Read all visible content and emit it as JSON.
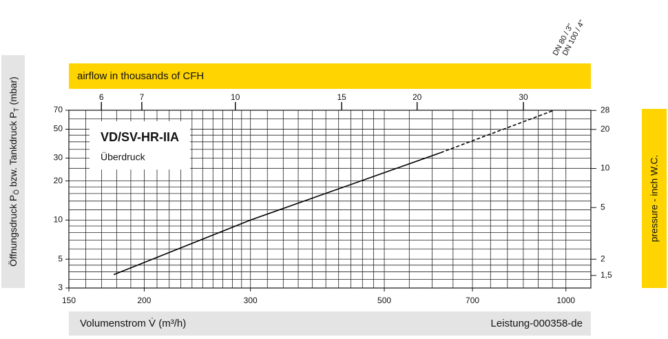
{
  "chart_data": {
    "type": "line",
    "title": "VD/SV-HR-IIA",
    "subtitle": "Überdruck",
    "x_label": "Volumenstrom V̇ (m³/h)",
    "y_label": [
      "Öffnungsdruck P",
      "Ö",
      " bzw. Tankdruck P",
      "T",
      " (mbar)"
    ],
    "x2_label": "airflow in thousands of CFH",
    "y2_label": "pressure - inch W.C.",
    "footer": "Leistung-000358-de",
    "annotations": [
      "DN 80 / 3\"",
      "DN 100 / 4\""
    ],
    "xscale": "log",
    "yscale": "log",
    "xlim": [
      150,
      1100
    ],
    "ylim": [
      3,
      70
    ],
    "xticks": [
      150,
      200,
      300,
      500,
      700,
      1000
    ],
    "yticks": [
      3,
      5,
      10,
      20,
      30,
      50,
      70
    ],
    "xgrid": [
      160,
      170,
      180,
      190,
      200,
      210,
      220,
      230,
      240,
      250,
      260,
      270,
      280,
      290,
      300,
      320,
      340,
      360,
      380,
      400,
      420,
      440,
      460,
      480,
      500,
      550,
      600,
      650,
      700,
      750,
      800,
      850,
      900,
      950,
      1000
    ],
    "ygrid": [
      3.5,
      4,
      4.5,
      5,
      6,
      7,
      8,
      9,
      10,
      12,
      14,
      16,
      18,
      20,
      25,
      30,
      35,
      40,
      45,
      50,
      60
    ],
    "x2lim": [
      5.3,
      38.8
    ],
    "x2ticks": [
      6,
      7,
      10,
      15,
      20,
      30
    ],
    "y2lim": [
      1.2,
      28.1
    ],
    "y2ticks": [
      28,
      20,
      10,
      5,
      2,
      {
        "value": 1.5,
        "label": "1,5"
      }
    ],
    "band_color": "#ffd400",
    "label_band_color": "#e4e4e4",
    "series": [
      {
        "color": "#000000",
        "line_style": "solid",
        "x": [
          178,
          300,
          620
        ],
        "values": [
          3.8,
          10,
          33
        ]
      },
      {
        "color": "#000000",
        "line_style": "dashed",
        "x": [
          620,
          956
        ],
        "values": [
          33,
          70
        ]
      }
    ]
  }
}
